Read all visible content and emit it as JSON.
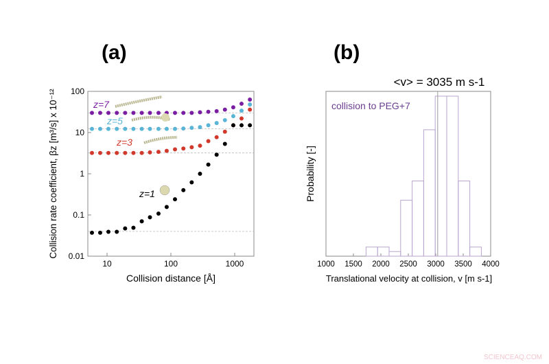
{
  "watermark": "SCIENCEAQ.COM",
  "chart_data": [
    {
      "panel": "(a)",
      "type": "scatter",
      "xlabel": "Collision distance [Å]",
      "ylabel": "Collision rate coefficient, βz [m³/s] x 10⁻¹²",
      "xscale": "log",
      "yscale": "log",
      "xlim": [
        5,
        2000
      ],
      "ylim": [
        0.01,
        100
      ],
      "xticks": [
        "10",
        "100",
        "1000"
      ],
      "yticks": [
        "0.01",
        "0.1",
        "1",
        "10",
        "100"
      ],
      "grid": false,
      "x": [
        5.8,
        7.8,
        10.5,
        14.2,
        19.2,
        25.9,
        35,
        47,
        64,
        86,
        116,
        157,
        212,
        286,
        386,
        521,
        703,
        950,
        1280,
        1730
      ],
      "series": [
        {
          "name": "z=7",
          "color": "#7b1fa2",
          "values": [
            30,
            30,
            30,
            30,
            30,
            30,
            30,
            30,
            30,
            30,
            30,
            30,
            30,
            31,
            32,
            33,
            36,
            41,
            50,
            63
          ],
          "plateau": 30
        },
        {
          "name": "z=5",
          "color": "#5ab4d6",
          "values": [
            12.3,
            12.3,
            12.3,
            12.3,
            12.3,
            12.3,
            12.3,
            12.3,
            12.3,
            12.3,
            12.3,
            12.5,
            13,
            13.5,
            15,
            17,
            20,
            25,
            34,
            48
          ],
          "plateau": 12.3
        },
        {
          "name": "z=3",
          "color": "#d0392b",
          "values": [
            3.2,
            3.2,
            3.2,
            3.2,
            3.2,
            3.2,
            3.2,
            3.3,
            3.4,
            3.6,
            3.9,
            4.1,
            4.4,
            4.8,
            6.2,
            7.7,
            10.5,
            15,
            22,
            36
          ],
          "plateau": 3.2
        },
        {
          "name": "z=1",
          "color": "#000000",
          "values": [
            0.037,
            0.037,
            0.039,
            0.039,
            0.047,
            0.049,
            0.07,
            0.088,
            0.108,
            0.156,
            0.24,
            0.4,
            0.62,
            1.0,
            1.67,
            2.9,
            5.3,
            15,
            15,
            15
          ],
          "plateau": 0.04
        }
      ]
    },
    {
      "panel": "(b)",
      "type": "bar",
      "title": "<v> = 3035 m s-1",
      "annotation": "collision to PEG+7",
      "annotation_color": "#6a3d8f",
      "xlabel": "Translational velocity at collision, v [m s-1]",
      "ylabel": "Probability [-]",
      "xlim": [
        1000,
        4000
      ],
      "xticks": [
        "1000",
        "1500",
        "2000",
        "2500",
        "3000",
        "3500",
        "4000"
      ],
      "bin_edges": [
        1730,
        1940,
        2150,
        2360,
        2570,
        2780,
        2990,
        3200,
        3410,
        3620,
        3830
      ],
      "values": [
        0.057,
        0.057,
        0.029,
        0.35,
        0.47,
        0.79,
        1.0,
        1.0,
        0.47,
        0.057
      ],
      "bar_color": "#b9a6cf",
      "mean": 3035
    }
  ]
}
